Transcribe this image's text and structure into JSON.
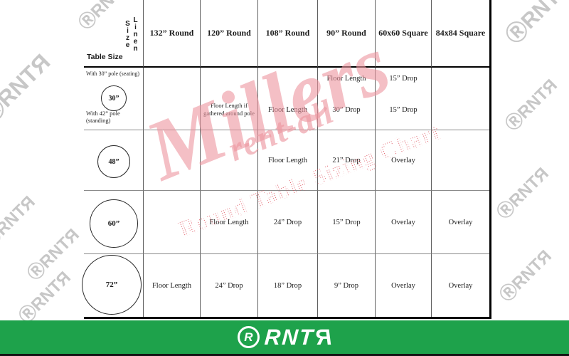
{
  "header": {
    "corner": {
      "column_axis_label": "Linen Size",
      "row_axis_label": "Table Size"
    },
    "columns": [
      "132” Round",
      "120” Round",
      "108” Round",
      "90” Round",
      "60x60 Square",
      "84x84 Square"
    ]
  },
  "rows": [
    {
      "table_size": "30”",
      "note_top": "With 30” pole (seating)",
      "note_bottom": "With 42” pole (standing)",
      "cells": [
        {
          "top": "",
          "bottom": ""
        },
        {
          "top": "",
          "bottom": "Floor Length if gathered around pole"
        },
        {
          "top": "",
          "bottom": "Floor Length"
        },
        {
          "top": "Floor Length",
          "bottom": "30” Drop"
        },
        {
          "top": "15” Drop",
          "bottom": "15” Drop"
        },
        {
          "top": "",
          "bottom": ""
        }
      ]
    },
    {
      "table_size": "48”",
      "cells": [
        "",
        "",
        "Floor Length",
        "21” Drop",
        "Overlay",
        ""
      ]
    },
    {
      "table_size": "60”",
      "cells": [
        "",
        "Floor Length",
        "24” Drop",
        "15” Drop",
        "Overlay",
        "Overlay"
      ]
    },
    {
      "table_size": "72”",
      "cells": [
        "Floor Length",
        "24” Drop",
        "18” Drop",
        "9” Drop",
        "Overlay",
        "Overlay"
      ]
    }
  ],
  "watermarks": {
    "brand_script_line1": "Millers",
    "brand_script_line2": "rent-all",
    "chart_title": "Round Table Sizing Chart",
    "tile_registered": "Ⓡ",
    "tile_main": "RNT",
    "tile_flipped": "R"
  },
  "footer": {
    "logo_circle_letter": "R",
    "logo_main": "RNT",
    "logo_flipped": "R"
  },
  "colors": {
    "brand_green": "#1EA24B",
    "watermark_pink": "#EC949E",
    "halftone_red": "#DD4B57",
    "tile_gray": "#C7C7C7"
  }
}
